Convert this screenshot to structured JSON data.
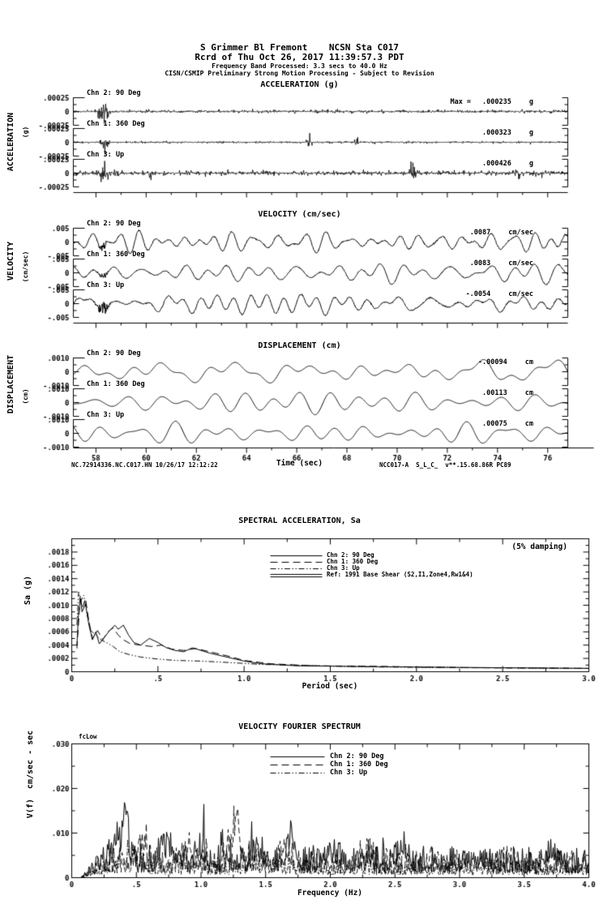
{
  "header": {
    "line1": "S Grimmer Bl Fremont    NCSN Sta C017",
    "line2": "Rcrd of Thu Oct 26, 2017 11:39:57.3 PDT",
    "line3": "Frequency Band Processed: 3.3 secs to 40.0 Hz",
    "line4": "CISN/CSMIP Preliminary Strong Motion Processing - Subject to Revision"
  },
  "footer": {
    "left": "NC.72914336.NC.C017.HN 10/26/17 12:12:22",
    "right": "NCC017-A  S_L_C_  v**.15.68.86R PC89"
  },
  "chart_data": [
    {
      "id": "acceleration",
      "type": "line",
      "title": "ACCELERATION (g)",
      "side_label": "ACCELERATION",
      "side_units": "(g)",
      "ytick_labels": [
        ".00025",
        "0",
        "-.00025"
      ],
      "x_major_ticks": [
        58,
        60,
        62,
        64,
        66,
        68,
        70,
        72,
        74,
        76
      ],
      "xlim": [
        57.1,
        76.8
      ],
      "channels": [
        {
          "label": "Chn 2: 90 Deg",
          "max_prefix": "Max =",
          "max_value": ".000235",
          "max_units": "g",
          "signal": "broadband",
          "bursts": [
            [
              58.3,
              3.0,
              0.18
            ]
          ]
        },
        {
          "label": "Chn 1: 360 Deg",
          "max_prefix": "",
          "max_value": ".000323",
          "max_units": "g",
          "signal": "broadband",
          "bursts": [
            [
              58.35,
              2.4,
              0.12
            ],
            [
              66.5,
              2.8,
              0.08
            ],
            [
              68.4,
              1.7,
              0.07
            ]
          ]
        },
        {
          "label": "Chn 3: Up",
          "max_prefix": "",
          "max_value": ".000426",
          "max_units": "g",
          "signal": "broadband",
          "bursts": [
            [
              58.35,
              2.0,
              0.15
            ],
            [
              60.2,
              1.5,
              0.08
            ],
            [
              64.9,
              1.3,
              0.08
            ],
            [
              70.6,
              1.5,
              0.07
            ],
            [
              74.8,
              1.5,
              0.07
            ]
          ]
        }
      ]
    },
    {
      "id": "velocity",
      "type": "line",
      "title": "VELOCITY (cm/sec)",
      "side_label": "VELOCITY",
      "side_units": "(cm/sec)",
      "ytick_labels": [
        ".005",
        "0",
        "-.005"
      ],
      "x_major_ticks": [
        58,
        60,
        62,
        64,
        66,
        68,
        70,
        72,
        74,
        76
      ],
      "xlim": [
        57.1,
        76.8
      ],
      "channels": [
        {
          "label": "Chn 2: 90 Deg",
          "max_prefix": "",
          "max_value": ".0087",
          "max_units": "cm/sec",
          "signal": "smooth",
          "bursts": [
            [
              58.3,
              0.8,
              0.2
            ]
          ]
        },
        {
          "label": "Chn 1: 360 Deg",
          "max_prefix": "",
          "max_value": ".0083",
          "max_units": "cm/sec",
          "signal": "smooth",
          "bursts": [
            [
              58.3,
              0.6,
              0.2
            ]
          ]
        },
        {
          "label": "Chn 3: Up",
          "max_prefix": "",
          "max_value": "-.0054",
          "max_units": "cm/sec",
          "signal": "smooth",
          "bursts": [
            [
              58.3,
              1.2,
              0.2
            ]
          ]
        }
      ]
    },
    {
      "id": "displacement",
      "type": "line",
      "title": "DISPLACEMENT (cm)",
      "side_label": "DISPLACEMENT",
      "side_units": "(cm)",
      "ytick_labels": [
        ".0010",
        "0",
        "-.0010"
      ],
      "x_major_ticks": [
        58,
        60,
        62,
        64,
        66,
        68,
        70,
        72,
        74,
        76
      ],
      "xlim": [
        57.1,
        76.8
      ],
      "x_label": "Time (sec)",
      "channels": [
        {
          "label": "Chn 2: 90 Deg",
          "max_prefix": "",
          "max_value": "-.00094",
          "max_units": "cm",
          "signal": "smoother",
          "bursts": []
        },
        {
          "label": "Chn 1: 360 Deg",
          "max_prefix": "",
          "max_value": ".00113",
          "max_units": "cm",
          "signal": "smoother",
          "bursts": []
        },
        {
          "label": "Chn 3: Up",
          "max_prefix": "",
          "max_value": ".00075",
          "max_units": "cm",
          "signal": "smoother",
          "bursts": []
        }
      ]
    },
    {
      "id": "spectral_acceleration",
      "type": "line",
      "title": "SPECTRAL ACCELERATION, Sa",
      "annotation": "(5% damping)",
      "x_label": "Period (sec)",
      "y_label": "Sa (g)",
      "xlim": [
        0,
        3.0
      ],
      "ylim": [
        0,
        0.002
      ],
      "xtick_labels": [
        "0",
        ".5",
        "1.0",
        "1.5",
        "2.0",
        "2.5",
        "3.0"
      ],
      "ytick_labels": [
        "0",
        ".0002",
        ".0004",
        ".0006",
        ".0008",
        ".0010",
        ".0012",
        ".0014",
        ".0016",
        ".0018"
      ],
      "legend": [
        {
          "label": "Chn 2: 90 Deg",
          "style": "solid"
        },
        {
          "label": "Chn 1: 360 Deg",
          "style": "long-dash"
        },
        {
          "label": "Chn 3: Up",
          "style": "dash-dot-dot"
        },
        {
          "label": "Ref: 1991 Base Shear (S2,I1,Zone4,Rw1&4)",
          "style": "double-solid"
        }
      ],
      "series": [
        {
          "name": "Chn 2: 90 Deg",
          "style": "solid",
          "points": [
            [
              0.03,
              0.0004
            ],
            [
              0.04,
              0.0009
            ],
            [
              0.05,
              0.0011
            ],
            [
              0.06,
              0.0009
            ],
            [
              0.08,
              0.00102
            ],
            [
              0.1,
              0.0007
            ],
            [
              0.12,
              0.00048
            ],
            [
              0.14,
              0.0006
            ],
            [
              0.16,
              0.00042
            ],
            [
              0.19,
              0.00052
            ],
            [
              0.22,
              0.00062
            ],
            [
              0.25,
              0.0007
            ],
            [
              0.27,
              0.00064
            ],
            [
              0.3,
              0.0007
            ],
            [
              0.33,
              0.00055
            ],
            [
              0.36,
              0.00044
            ],
            [
              0.4,
              0.0004
            ],
            [
              0.45,
              0.0005
            ],
            [
              0.5,
              0.00044
            ],
            [
              0.55,
              0.00036
            ],
            [
              0.6,
              0.00032
            ],
            [
              0.65,
              0.0003
            ],
            [
              0.7,
              0.00036
            ],
            [
              0.75,
              0.00032
            ],
            [
              0.8,
              0.00028
            ],
            [
              0.9,
              0.00022
            ],
            [
              1.0,
              0.00016
            ],
            [
              1.1,
              0.00012
            ],
            [
              1.3,
              9e-05
            ],
            [
              1.6,
              8e-05
            ],
            [
              2.0,
              7e-05
            ],
            [
              2.5,
              6e-05
            ],
            [
              3.0,
              5e-05
            ]
          ]
        },
        {
          "name": "Chn 1: 360 Deg",
          "style": "long-dash",
          "points": [
            [
              0.03,
              0.00035
            ],
            [
              0.05,
              0.00115
            ],
            [
              0.06,
              0.00095
            ],
            [
              0.08,
              0.0011
            ],
            [
              0.1,
              0.00075
            ],
            [
              0.12,
              0.0005
            ],
            [
              0.15,
              0.00062
            ],
            [
              0.18,
              0.00048
            ],
            [
              0.21,
              0.0006
            ],
            [
              0.24,
              0.00066
            ],
            [
              0.27,
              0.00055
            ],
            [
              0.3,
              0.00048
            ],
            [
              0.34,
              0.00042
            ],
            [
              0.4,
              0.0004
            ],
            [
              0.46,
              0.00038
            ],
            [
              0.52,
              0.0004
            ],
            [
              0.58,
              0.00034
            ],
            [
              0.65,
              0.00032
            ],
            [
              0.72,
              0.00035
            ],
            [
              0.8,
              0.0003
            ],
            [
              0.9,
              0.00024
            ],
            [
              1.0,
              0.00017
            ],
            [
              1.15,
              0.00012
            ],
            [
              1.4,
              9e-05
            ],
            [
              1.8,
              8e-05
            ],
            [
              2.3,
              6e-05
            ],
            [
              3.0,
              5e-05
            ]
          ]
        },
        {
          "name": "Chn 3: Up",
          "style": "dash-dot-dot",
          "points": [
            [
              0.03,
              0.0007
            ],
            [
              0.04,
              0.0012
            ],
            [
              0.05,
              0.00105
            ],
            [
              0.07,
              0.00115
            ],
            [
              0.09,
              0.00085
            ],
            [
              0.11,
              0.00062
            ],
            [
              0.14,
              0.00055
            ],
            [
              0.17,
              0.00048
            ],
            [
              0.2,
              0.00044
            ],
            [
              0.24,
              0.00038
            ],
            [
              0.28,
              0.0003
            ],
            [
              0.33,
              0.00026
            ],
            [
              0.4,
              0.00022
            ],
            [
              0.5,
              0.00019
            ],
            [
              0.6,
              0.00017
            ],
            [
              0.75,
              0.00016
            ],
            [
              0.9,
              0.00014
            ],
            [
              1.1,
              0.00011
            ],
            [
              1.4,
              9e-05
            ],
            [
              1.8,
              7e-05
            ],
            [
              2.4,
              6e-05
            ],
            [
              3.0,
              5e-05
            ]
          ]
        },
        {
          "name": "Ref: 1991 Base Shear (S2,I1,Zone4,Rw1&4)",
          "style": "double-solid",
          "points": [],
          "note": "reference curve above plotted amplitude range"
        }
      ]
    },
    {
      "id": "velocity_fourier_spectrum",
      "type": "line",
      "title": "VELOCITY FOURIER SPECTRUM",
      "corner_label": "fcLow",
      "x_label": "Frequency (Hz)",
      "y_label": "V(f)  cm/sec - sec",
      "xlim": [
        0,
        4.0
      ],
      "ylim": [
        0,
        0.03
      ],
      "xtick_labels": [
        "0",
        ".5",
        "1.0",
        "1.5",
        "2.0",
        "2.5",
        "3.0",
        "3.5",
        "4.0"
      ],
      "ytick_labels": [
        "0",
        ".010",
        ".020",
        ".030"
      ],
      "legend": [
        {
          "label": "Chn 2: 90 Deg",
          "style": "solid"
        },
        {
          "label": "Chn 1: 360 Deg",
          "style": "long-dash"
        },
        {
          "label": "Chn 3: Up",
          "style": "dash-dot-dot"
        }
      ],
      "series": [
        {
          "name": "Chn 2: 90 Deg",
          "style": "solid",
          "mean": 0.0045,
          "peaks": [
            [
              0.42,
              0.016,
              0.025
            ],
            [
              0.35,
              0.007,
              0.05
            ],
            [
              0.75,
              0.004,
              0.08
            ],
            [
              1.0,
              0.005,
              0.05
            ],
            [
              1.45,
              0.004,
              0.06
            ],
            [
              1.7,
              0.009,
              0.05
            ],
            [
              2.0,
              0.004,
              0.07
            ],
            [
              2.55,
              0.005,
              0.06
            ],
            [
              3.1,
              0.003,
              0.08
            ],
            [
              3.7,
              0.004,
              0.05
            ]
          ]
        },
        {
          "name": "Chn 1: 360 Deg",
          "style": "long-dash",
          "mean": 0.004,
          "peaks": [
            [
              1.28,
              0.014,
              0.03
            ],
            [
              1.22,
              0.007,
              0.04
            ],
            [
              0.55,
              0.005,
              0.06
            ],
            [
              0.9,
              0.004,
              0.06
            ],
            [
              1.65,
              0.006,
              0.05
            ],
            [
              2.3,
              0.003,
              0.08
            ],
            [
              3.4,
              0.003,
              0.06
            ]
          ]
        },
        {
          "name": "Chn 3: Up",
          "style": "dash-dot-dot",
          "mean": 0.0028,
          "peaks": [
            [
              0.45,
              0.003,
              0.1
            ],
            [
              1.5,
              0.002,
              0.1
            ]
          ]
        }
      ]
    }
  ]
}
